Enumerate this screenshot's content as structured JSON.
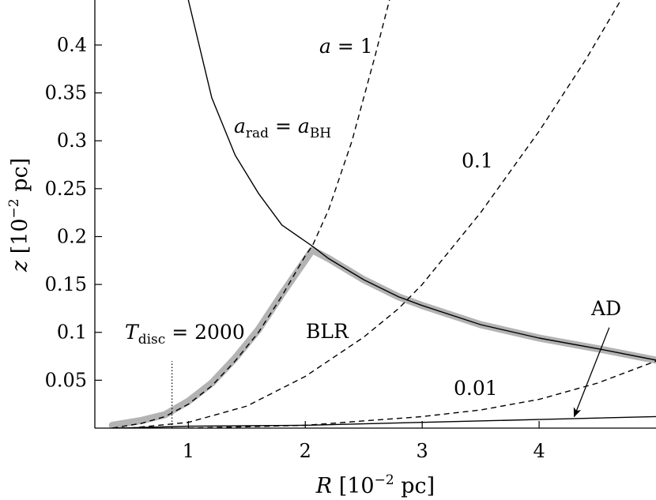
{
  "chart_data": {
    "type": "line",
    "title": "",
    "xlabel": {
      "var": "R",
      "unit": "[10",
      "exp": "−2",
      "unit_end": " pc]"
    },
    "ylabel": {
      "var": "z",
      "unit": "[10",
      "exp": "−2",
      "unit_end": " pc]"
    },
    "xlim": [
      0.2,
      5.0
    ],
    "ylim": [
      0.0,
      0.447
    ],
    "x_ticks": [
      {
        "value": 1,
        "label": "1"
      },
      {
        "value": 2,
        "label": "2"
      },
      {
        "value": 3,
        "label": "3"
      },
      {
        "value": 4,
        "label": "4"
      }
    ],
    "y_ticks": [
      {
        "value": 0.05,
        "label": "0.05"
      },
      {
        "value": 0.1,
        "label": "0.1"
      },
      {
        "value": 0.15,
        "label": "0.15"
      },
      {
        "value": 0.2,
        "label": "0.2"
      },
      {
        "value": 0.25,
        "label": "0.25"
      },
      {
        "value": 0.3,
        "label": "0.3"
      },
      {
        "value": 0.35,
        "label": "0.35"
      },
      {
        "value": 0.4,
        "label": "0.4"
      }
    ],
    "series": [
      {
        "style": "solid",
        "points": [
          [
            1.0,
            0.447
          ],
          [
            1.2,
            0.345
          ],
          [
            1.4,
            0.285
          ],
          [
            1.6,
            0.245
          ],
          [
            1.8,
            0.212
          ],
          [
            2.06,
            0.19
          ],
          [
            2.2,
            0.177
          ],
          [
            2.5,
            0.155
          ],
          [
            2.8,
            0.137
          ],
          [
            3.0,
            0.128
          ],
          [
            3.5,
            0.108
          ],
          [
            4.0,
            0.094
          ],
          [
            4.5,
            0.083
          ],
          [
            5.0,
            0.071
          ]
        ]
      },
      {
        "style": "dashed",
        "points": [
          [
            0.35,
            0.0
          ],
          [
            0.6,
            0.005
          ],
          [
            0.8,
            0.012
          ],
          [
            1.0,
            0.025
          ],
          [
            1.2,
            0.044
          ],
          [
            1.4,
            0.07
          ],
          [
            1.6,
            0.1
          ],
          [
            1.8,
            0.138
          ],
          [
            2.0,
            0.18
          ],
          [
            2.06,
            0.19
          ],
          [
            2.2,
            0.228
          ],
          [
            2.4,
            0.3
          ],
          [
            2.6,
            0.39
          ],
          [
            2.72,
            0.447
          ]
        ]
      },
      {
        "style": "dashed",
        "points": [
          [
            0.5,
            0.0
          ],
          [
            1.0,
            0.006
          ],
          [
            1.5,
            0.023
          ],
          [
            2.0,
            0.054
          ],
          [
            2.5,
            0.095
          ],
          [
            2.8,
            0.125
          ],
          [
            3.0,
            0.15
          ],
          [
            3.5,
            0.225
          ],
          [
            4.0,
            0.31
          ],
          [
            4.4,
            0.385
          ],
          [
            4.7,
            0.447
          ]
        ]
      },
      {
        "style": "dashed",
        "points": [
          [
            1.0,
            0.0
          ],
          [
            2.0,
            0.003
          ],
          [
            3.0,
            0.012
          ],
          [
            3.5,
            0.019
          ],
          [
            4.0,
            0.03
          ],
          [
            4.5,
            0.047
          ],
          [
            5.0,
            0.07
          ]
        ]
      },
      {
        "style": "solid",
        "points": [
          [
            0.4,
            0.0
          ],
          [
            1.0,
            0.002
          ],
          [
            2.0,
            0.003
          ],
          [
            3.0,
            0.006
          ],
          [
            4.0,
            0.009
          ],
          [
            5.0,
            0.012
          ]
        ]
      },
      {
        "style": "band",
        "color": "#b3b3b3",
        "points": [
          [
            0.35,
            0.003
          ],
          [
            0.6,
            0.008
          ],
          [
            0.8,
            0.014
          ],
          [
            1.0,
            0.028
          ],
          [
            1.2,
            0.047
          ],
          [
            1.4,
            0.073
          ],
          [
            1.6,
            0.103
          ],
          [
            1.8,
            0.14
          ],
          [
            2.06,
            0.186
          ],
          [
            2.2,
            0.177
          ],
          [
            2.5,
            0.155
          ],
          [
            2.8,
            0.137
          ],
          [
            3.0,
            0.128
          ],
          [
            3.5,
            0.108
          ],
          [
            4.0,
            0.094
          ],
          [
            4.5,
            0.083
          ],
          [
            5.0,
            0.071
          ]
        ]
      },
      {
        "style": "dotted",
        "points": [
          [
            0.86,
            0.0
          ],
          [
            0.86,
            0.07
          ]
        ]
      }
    ],
    "annotations": {
      "a_rad": {
        "main": "a",
        "sub1": "rad",
        "eq": " = ",
        "main2": "a",
        "sub2": "BH",
        "x": 2.0,
        "y": 0.315
      },
      "a_eq_1": {
        "main": "a",
        "eq": " = 1",
        "x": 1.85,
        "y": 0.41
      },
      "val_01": {
        "text": "0.1",
        "x": 3.6,
        "y": 0.28
      },
      "val_001": {
        "text": "0.01",
        "x": 3.4,
        "y": 0.04
      },
      "blr": {
        "text": "BLR",
        "x": 1.7,
        "y": 0.105
      },
      "ad": {
        "text": "AD",
        "x": 4.6,
        "y": 0.13
      },
      "tdisc": {
        "main": "T",
        "sub": "disc",
        "eq": " = 2000",
        "x": 0.5,
        "y": 0.105
      }
    },
    "ad_arrow": {
      "from": [
        4.6,
        0.105
      ],
      "to": [
        4.3,
        0.012
      ]
    },
    "grid": false
  }
}
